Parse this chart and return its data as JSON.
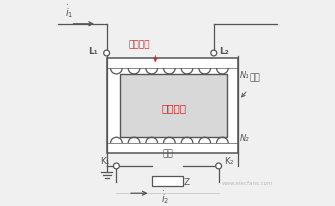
{
  "bg_color": "#f0f0f0",
  "primary_label": "一次绕组",
  "secondary_label": "二次绕组",
  "iron_core_label": "鐵心",
  "load_label": "负荷",
  "L1": "L₁",
  "L2": "L₂",
  "K1": "K₁",
  "K2": "K₂",
  "N1": "N₁",
  "N2": "N₂",
  "Z_label": "Z",
  "line_color": "#555555",
  "primary_text_color": "#cc2222",
  "secondary_text_color": "#cc2222",
  "watermark": "www.elecfans.com"
}
